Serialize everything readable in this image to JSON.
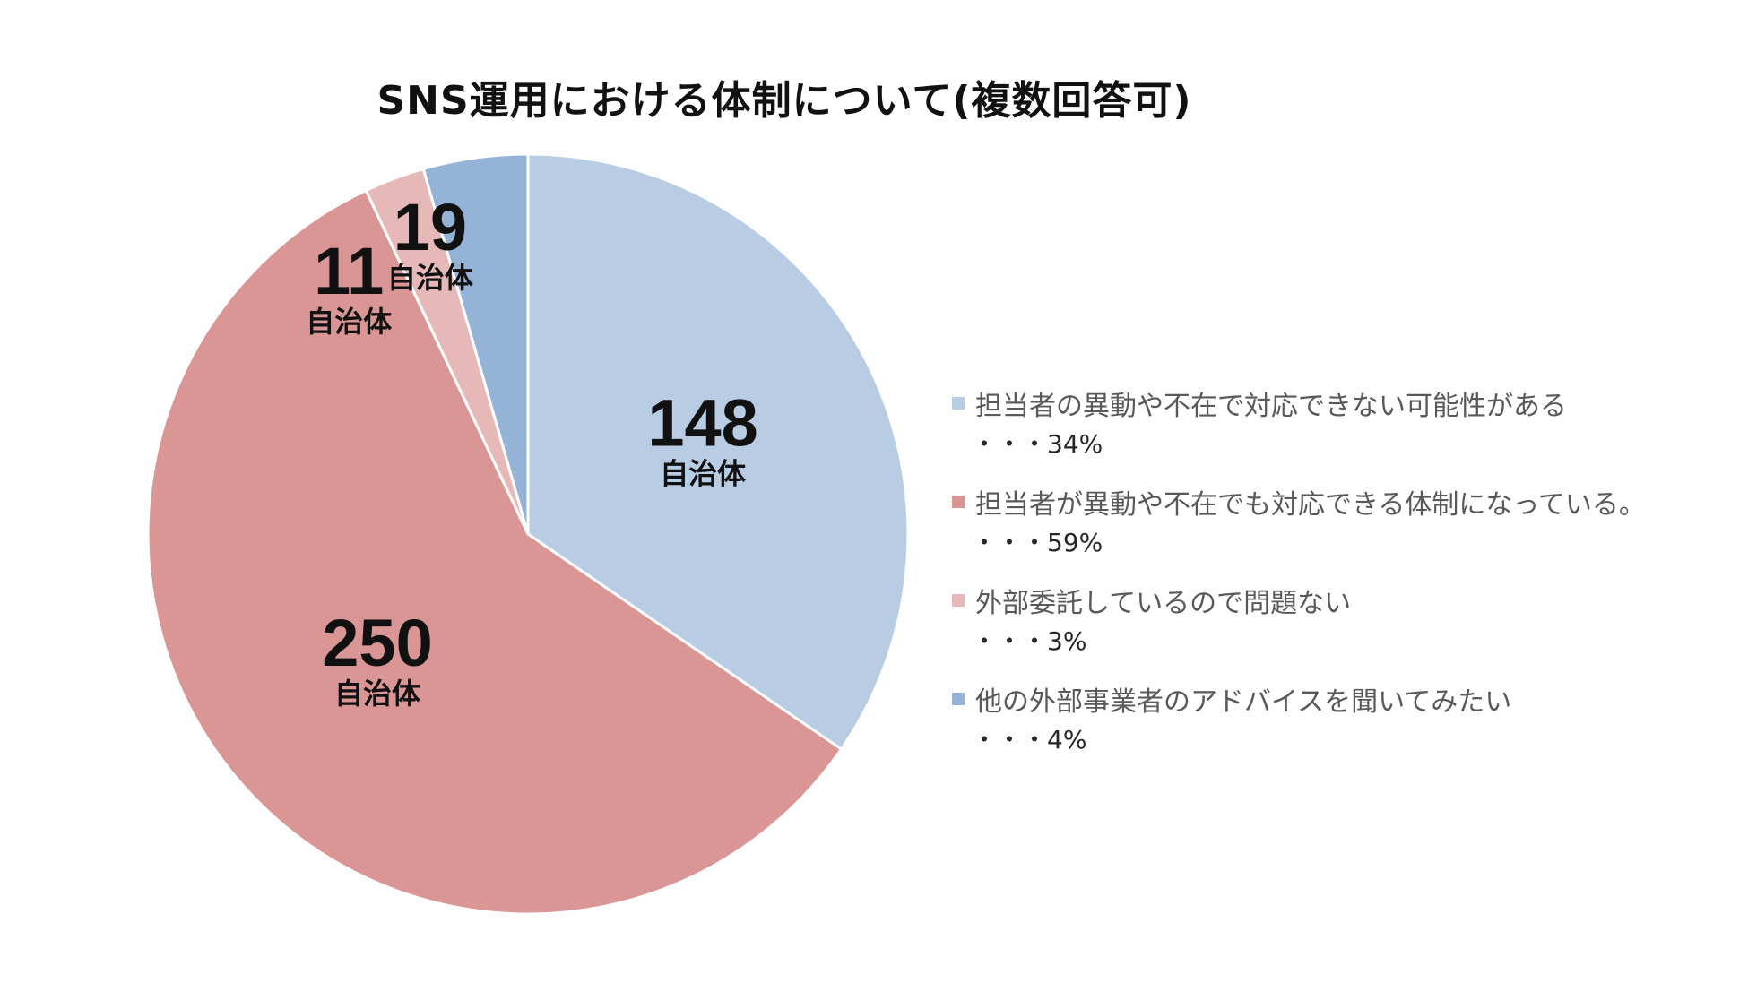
{
  "chart_data": {
    "type": "pie",
    "title": "SNS運用における体制について(複数回答可)",
    "slices": [
      {
        "label": "担当者の異動や不在で対応できない可能性がある",
        "value": 148,
        "unit": "自治体",
        "percent_text": "・・・34%",
        "color": "#B8CCE4"
      },
      {
        "label": "担当者が異動や不在でも対応できる体制になっている。",
        "value": 250,
        "unit": "自治体",
        "percent_text": "・・・59%",
        "color": "#DA9694"
      },
      {
        "label": "外部委託しているので問題ない",
        "value": 11,
        "unit": "自治体",
        "percent_text": "・・・3%",
        "color": "#E6B9B8"
      },
      {
        "label": "他の外部事業者のアドバイスを聞いてみたい",
        "value": 19,
        "unit": "自治体",
        "percent_text": "・・・4%",
        "color": "#95B3D7"
      }
    ],
    "start_angle_deg": 0,
    "direction": "clockwise",
    "legend_position": "right"
  }
}
